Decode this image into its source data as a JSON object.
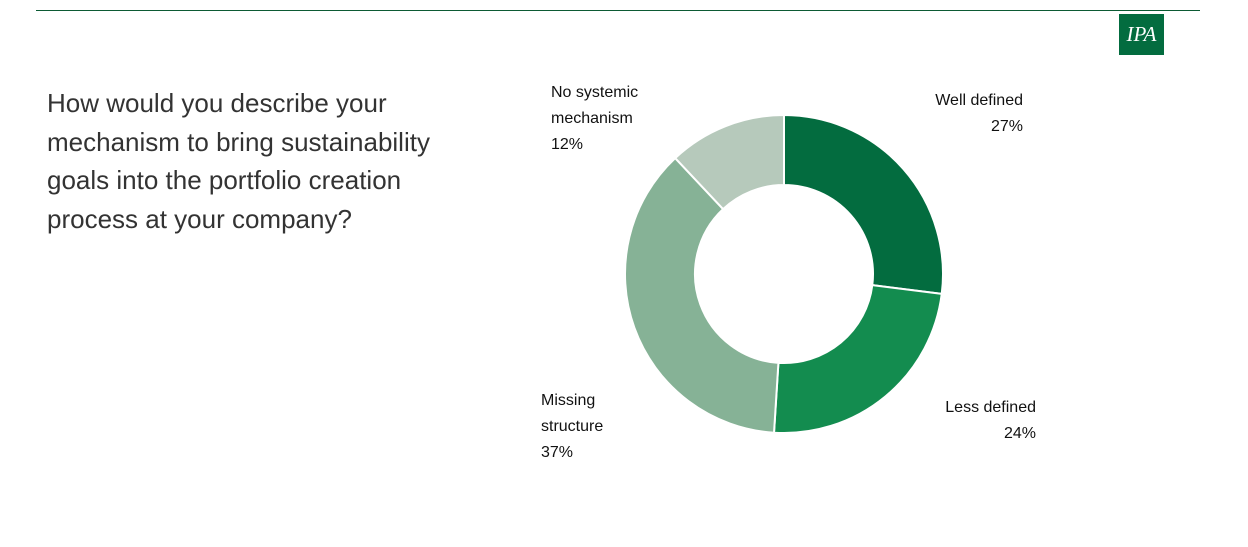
{
  "logo": "IPA",
  "chart_data": {
    "type": "donut",
    "title": "How would you describe your mechanism to bring sustainability goals into the portfolio creation process at your company?",
    "categories": [
      "Well defined",
      "Less defined",
      "Missing structure",
      "No systemic mechanism"
    ],
    "values": [
      27,
      24,
      37,
      12
    ],
    "value_labels": [
      "27%",
      "24%",
      "37%",
      "12%"
    ],
    "colors": [
      "#036c3f",
      "#138c4f",
      "#86b296",
      "#b6c9bb"
    ]
  }
}
